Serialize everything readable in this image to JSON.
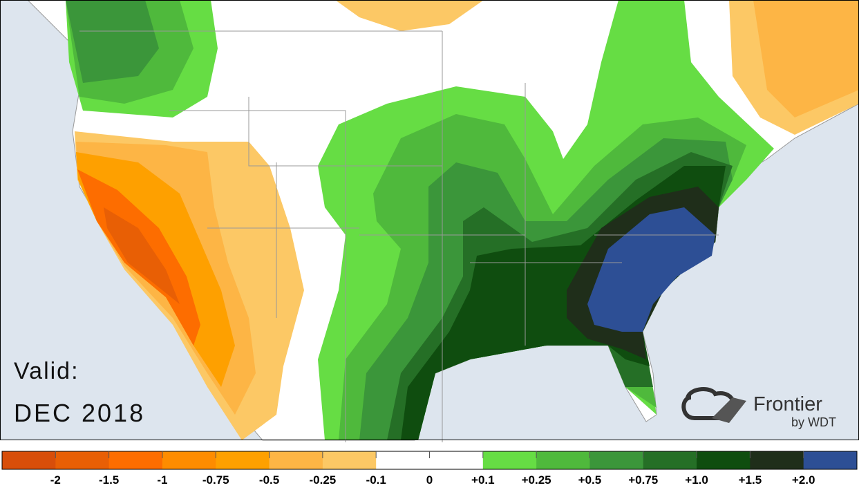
{
  "map": {
    "valid_label": "Valid:",
    "period": "DEC 2018"
  },
  "logo": {
    "name": "Frontier",
    "by": "by WDT"
  },
  "legend": {
    "labels": [
      "-2",
      "-1.5",
      "-1",
      "-0.75",
      "-0.5",
      "-0.25",
      "-0.1",
      "0",
      "+0.1",
      "+0.25",
      "+0.5",
      "+0.75",
      "+1.0",
      "+1.5",
      "+2.0"
    ],
    "colors": [
      "#d84e0a",
      "#e85f05",
      "#fd6d00",
      "#fe8c00",
      "#fea000",
      "#fdb545",
      "#fcc865",
      "#ffffff",
      "#ffffff",
      "#66dd44",
      "#4fb93c",
      "#3b963a",
      "#256f26",
      "#0f4d0f",
      "#1f2e1a",
      "#2d4f95"
    ]
  }
}
